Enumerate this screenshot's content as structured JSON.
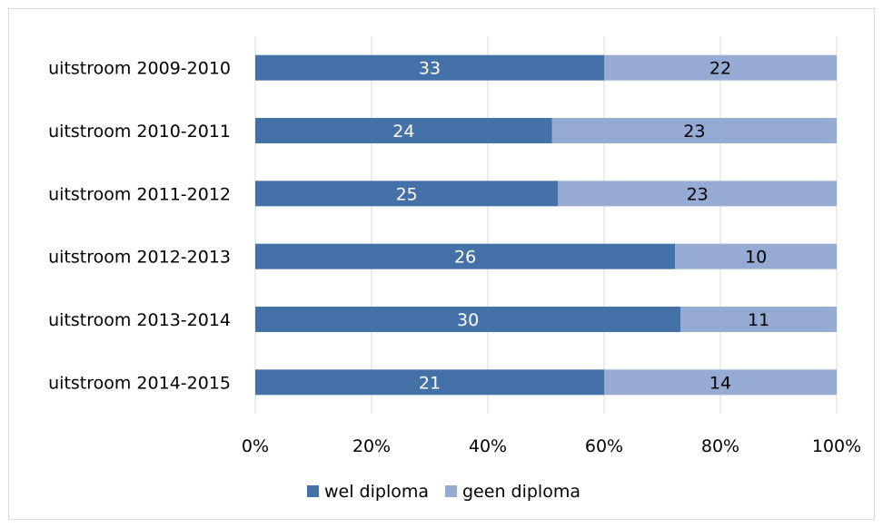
{
  "chart_data": {
    "type": "bar",
    "orientation": "horizontal",
    "stacked": "percent",
    "categories": [
      "uitstroom 2009-2010",
      "uitstroom 2010-2011",
      "uitstroom 2011-2012",
      "uitstroom 2012-2013",
      "uitstroom 2013-2014",
      "uitstroom 2014-2015"
    ],
    "series": [
      {
        "name": "wel diploma",
        "values": [
          33,
          24,
          25,
          26,
          30,
          21
        ],
        "color": "#4472a8",
        "label_color": "#ffffff"
      },
      {
        "name": "geen diploma",
        "values": [
          22,
          23,
          23,
          10,
          11,
          14
        ],
        "color": "#95abd3",
        "label_color": "#000000"
      }
    ],
    "x_ticks": [
      "0%",
      "20%",
      "40%",
      "60%",
      "80%",
      "100%"
    ],
    "xlim": [
      0,
      100
    ],
    "grid": true,
    "gridline_color": "#d9d9d9",
    "legend_position": "bottom",
    "title": "",
    "xlabel": "",
    "ylabel": ""
  }
}
